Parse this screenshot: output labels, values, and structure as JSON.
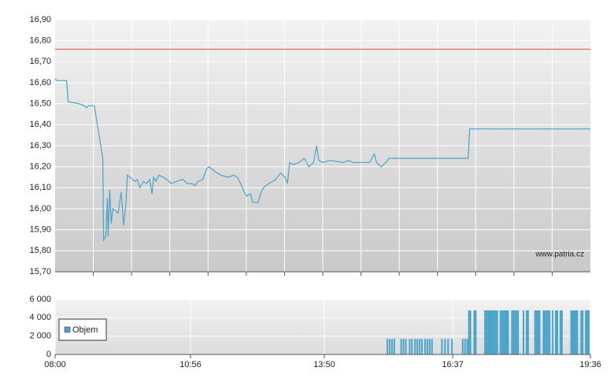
{
  "chart_data": [
    {
      "type": "line",
      "color": "#4ba3c9",
      "grid": true,
      "watermark": "www.patria.cz",
      "reference_line": {
        "value": 16.76,
        "color": "#e05040"
      },
      "xlim": [
        480,
        1176
      ],
      "ylim": [
        15.7,
        16.9
      ],
      "yticks": [
        {
          "value": 15.7,
          "label": "15,70"
        },
        {
          "value": 15.8,
          "label": "15,80"
        },
        {
          "value": 15.9,
          "label": "15,90"
        },
        {
          "value": 16.0,
          "label": "16,00"
        },
        {
          "value": 16.1,
          "label": "16,10"
        },
        {
          "value": 16.2,
          "label": "16,20"
        },
        {
          "value": 16.3,
          "label": "16,30"
        },
        {
          "value": 16.4,
          "label": "16,40"
        },
        {
          "value": 16.5,
          "label": "16,50"
        },
        {
          "value": 16.6,
          "label": "16,60"
        },
        {
          "value": 16.7,
          "label": "16,70"
        },
        {
          "value": 16.8,
          "label": "16,80"
        },
        {
          "value": 16.9,
          "label": "16,90"
        }
      ],
      "x": [
        480,
        482,
        495,
        497,
        511,
        518,
        521,
        523,
        531,
        542,
        543,
        546,
        548,
        549,
        551,
        553,
        555,
        562,
        566,
        569,
        572,
        574,
        584,
        587,
        590,
        595,
        599,
        603,
        606,
        608,
        611,
        615,
        621,
        625,
        631,
        638,
        646,
        652,
        658,
        662,
        666,
        672,
        677,
        680,
        687,
        695,
        705,
        712,
        717,
        721,
        726,
        729,
        734,
        737,
        744,
        748,
        751,
        754,
        758,
        767,
        773,
        779,
        782,
        785,
        789,
        797,
        804,
        810,
        816,
        820,
        823,
        828,
        838,
        854,
        862,
        867,
        889,
        895,
        898,
        904,
        910,
        914,
        1017,
        1019,
        1176
      ],
      "values": [
        16.62,
        16.61,
        16.61,
        16.51,
        16.5,
        16.49,
        16.48,
        16.49,
        16.49,
        16.24,
        15.85,
        15.87,
        16.05,
        15.87,
        16.09,
        15.93,
        16.0,
        15.98,
        16.08,
        15.92,
        16.02,
        16.16,
        16.13,
        16.14,
        16.1,
        16.13,
        16.12,
        16.14,
        16.07,
        16.15,
        16.13,
        16.16,
        16.15,
        16.14,
        16.12,
        16.13,
        16.14,
        16.12,
        16.12,
        16.11,
        16.13,
        16.14,
        16.19,
        16.2,
        16.18,
        16.16,
        16.15,
        16.16,
        16.15,
        16.12,
        16.08,
        16.06,
        16.07,
        16.03,
        16.03,
        16.08,
        16.1,
        16.11,
        16.12,
        16.14,
        16.17,
        16.15,
        16.12,
        16.22,
        16.21,
        16.22,
        16.24,
        16.2,
        16.22,
        16.3,
        16.23,
        16.22,
        16.23,
        16.22,
        16.23,
        16.22,
        16.22,
        16.26,
        16.22,
        16.2,
        16.22,
        16.24,
        16.24,
        16.38,
        16.38
      ]
    },
    {
      "type": "bar",
      "grid": true,
      "legend": "bottom-left",
      "xlim": [
        480,
        1176
      ],
      "xticks": [
        {
          "value": 480,
          "label": "08:00"
        },
        {
          "value": 656,
          "label": "10:56"
        },
        {
          "value": 830,
          "label": "13:50"
        },
        {
          "value": 997,
          "label": "16:37"
        },
        {
          "value": 1176,
          "label": "19:36"
        }
      ],
      "ylim": [
        0,
        6000
      ],
      "yticks": [
        0,
        {
          "value": 2000,
          "label": "2 000"
        },
        {
          "value": 4000,
          "label": "4 000"
        },
        {
          "value": 6000,
          "label": "6 000"
        }
      ],
      "x": [
        912,
        915,
        918,
        921,
        930,
        933,
        936,
        941,
        944,
        948,
        951,
        954,
        957,
        961,
        964,
        967,
        970,
        983,
        987,
        991,
        996,
        1010,
        1013,
        1016,
        1018,
        1020,
        1025,
        1027,
        1039,
        1041,
        1043,
        1045,
        1047,
        1049,
        1051,
        1053,
        1055,
        1059,
        1061,
        1063,
        1065,
        1067,
        1069,
        1074,
        1076,
        1078,
        1080,
        1082,
        1089,
        1093,
        1095,
        1104,
        1106,
        1108,
        1110,
        1115,
        1117,
        1119,
        1121,
        1123,
        1127,
        1131,
        1133,
        1137,
        1139,
        1151,
        1153,
        1155,
        1157,
        1159,
        1164,
        1166,
        1170,
        1172,
        1174
      ],
      "series": [
        {
          "name": "Objem",
          "color": "#4ba3c9",
          "values": [
            1700,
            1700,
            1700,
            1700,
            1700,
            1700,
            1700,
            1700,
            1700,
            1700,
            1700,
            1700,
            1700,
            1700,
            1700,
            1700,
            1700,
            1700,
            1700,
            1700,
            1700,
            1700,
            1700,
            1700,
            4800,
            4800,
            4800,
            4800,
            4800,
            4800,
            4800,
            4800,
            4800,
            4800,
            4800,
            4800,
            4800,
            4800,
            4800,
            4800,
            4800,
            4800,
            4800,
            4800,
            4800,
            4800,
            4800,
            4800,
            4800,
            4800,
            4800,
            4800,
            4800,
            4800,
            4800,
            4800,
            4800,
            4800,
            4800,
            4800,
            4800,
            4800,
            4800,
            4800,
            4800,
            4800,
            4800,
            4800,
            4800,
            4800,
            4800,
            4800,
            4800,
            4800,
            4800
          ]
        }
      ]
    }
  ]
}
